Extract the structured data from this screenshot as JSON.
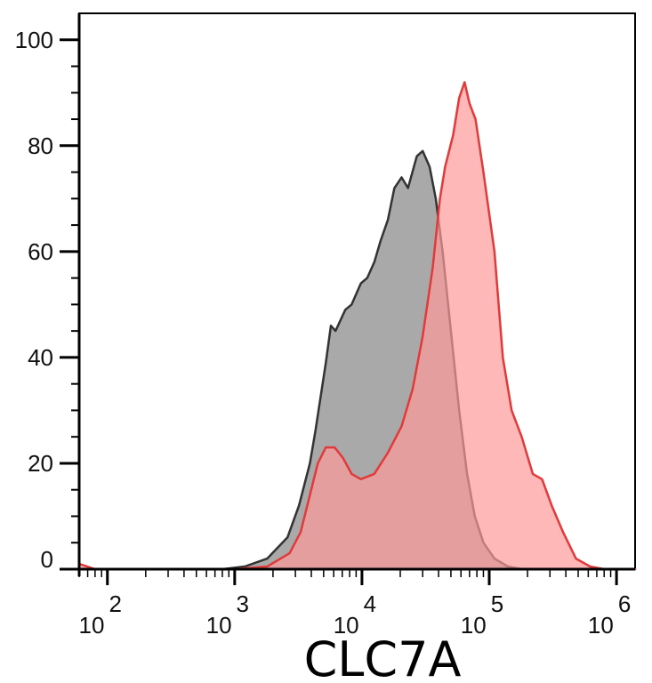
{
  "chart_data": {
    "type": "area",
    "title": "",
    "xlabel": "CLC7A",
    "ylabel": "",
    "xscale": "log",
    "xlim": [
      60,
      1400000
    ],
    "ylim": [
      0,
      105
    ],
    "grid": false,
    "y_ticks": [
      0,
      20,
      40,
      60,
      80,
      100
    ],
    "x_ticks": [
      {
        "value": 100,
        "base": "10",
        "exp": "2"
      },
      {
        "value": 1000,
        "base": "10",
        "exp": "3"
      },
      {
        "value": 10000,
        "base": "10",
        "exp": "4"
      },
      {
        "value": 100000,
        "base": "10",
        "exp": "5"
      },
      {
        "value": 1000000,
        "base": "10",
        "exp": "6"
      }
    ],
    "series": [
      {
        "fill": "#a9a9a9",
        "stroke": "#333333",
        "points": [
          [
            60,
            0
          ],
          [
            800,
            0
          ],
          [
            1200,
            0.5
          ],
          [
            1800,
            2
          ],
          [
            2600,
            6
          ],
          [
            3200,
            12
          ],
          [
            3900,
            20
          ],
          [
            4300,
            26
          ],
          [
            5200,
            39
          ],
          [
            5700,
            46
          ],
          [
            6200,
            45
          ],
          [
            7400,
            49
          ],
          [
            8300,
            50
          ],
          [
            9800,
            54
          ],
          [
            11000,
            55
          ],
          [
            12500,
            58
          ],
          [
            14000,
            62
          ],
          [
            16000,
            66
          ],
          [
            18000,
            72
          ],
          [
            20500,
            74
          ],
          [
            23000,
            72
          ],
          [
            27000,
            78
          ],
          [
            30000,
            79
          ],
          [
            34000,
            76
          ],
          [
            38000,
            70
          ],
          [
            43000,
            60
          ],
          [
            50000,
            45
          ],
          [
            58000,
            30
          ],
          [
            67000,
            18
          ],
          [
            77000,
            10
          ],
          [
            90000,
            5
          ],
          [
            110000,
            2
          ],
          [
            140000,
            0.5
          ],
          [
            180000,
            0
          ],
          [
            1400000,
            0
          ]
        ]
      },
      {
        "fill": "#ff9a9a",
        "stroke": "#e03a3a",
        "points": [
          [
            60,
            1
          ],
          [
            80,
            0
          ],
          [
            1000,
            0
          ],
          [
            1800,
            0.5
          ],
          [
            2700,
            3
          ],
          [
            3300,
            7
          ],
          [
            3900,
            14
          ],
          [
            4500,
            20
          ],
          [
            5200,
            23
          ],
          [
            6100,
            23
          ],
          [
            7100,
            21
          ],
          [
            8300,
            18
          ],
          [
            9800,
            17
          ],
          [
            12500,
            18
          ],
          [
            16000,
            22
          ],
          [
            20500,
            27
          ],
          [
            25000,
            34
          ],
          [
            30000,
            44
          ],
          [
            36000,
            57
          ],
          [
            41000,
            70
          ],
          [
            45000,
            76
          ],
          [
            52000,
            82
          ],
          [
            58000,
            89
          ],
          [
            64000,
            92
          ],
          [
            70000,
            88
          ],
          [
            78000,
            85
          ],
          [
            90000,
            75
          ],
          [
            110000,
            60
          ],
          [
            128000,
            40
          ],
          [
            150000,
            30
          ],
          [
            180000,
            25
          ],
          [
            220000,
            18
          ],
          [
            260000,
            17
          ],
          [
            310000,
            12
          ],
          [
            380000,
            7
          ],
          [
            480000,
            2
          ],
          [
            620000,
            0.5
          ],
          [
            800000,
            0
          ],
          [
            1400000,
            0
          ]
        ]
      }
    ]
  }
}
